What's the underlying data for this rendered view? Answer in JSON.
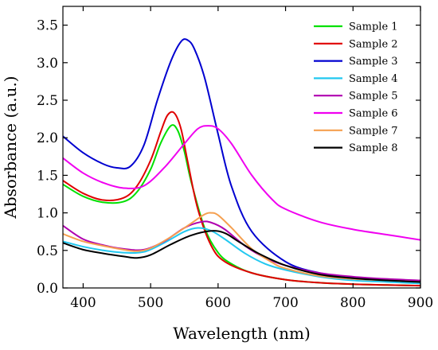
{
  "chart_data": {
    "type": "line",
    "xlabel": "Wavelength (nm)",
    "ylabel": "Absorbance (a.u.)",
    "xlim": [
      370,
      900
    ],
    "ylim": [
      0,
      3.75
    ],
    "xticks": [
      400,
      500,
      600,
      700,
      800,
      900
    ],
    "yticks": [
      0.0,
      0.5,
      1.0,
      1.5,
      2.0,
      2.5,
      3.0,
      3.5
    ],
    "ytick_labels": [
      "0.0",
      "0.5",
      "1.0",
      "1.5",
      "2.0",
      "2.5",
      "3.0",
      "3.5"
    ],
    "grid": false,
    "legend_position": "top-right",
    "series": [
      {
        "name": "Sample 1",
        "color": "#00e000",
        "x": [
          370,
          400,
          430,
          460,
          480,
          500,
          515,
          530,
          540,
          550,
          560,
          580,
          600,
          620,
          650,
          700,
          750,
          800,
          850,
          900
        ],
        "y": [
          1.38,
          1.22,
          1.14,
          1.15,
          1.28,
          1.58,
          1.93,
          2.16,
          2.1,
          1.82,
          1.42,
          0.8,
          0.47,
          0.32,
          0.2,
          0.11,
          0.07,
          0.05,
          0.04,
          0.03
        ]
      },
      {
        "name": "Sample 2",
        "color": "#e00000",
        "x": [
          370,
          400,
          430,
          460,
          480,
          500,
          515,
          525,
          535,
          545,
          555,
          570,
          590,
          610,
          650,
          700,
          750,
          800,
          850,
          900
        ],
        "y": [
          1.43,
          1.26,
          1.17,
          1.2,
          1.36,
          1.7,
          2.08,
          2.3,
          2.33,
          2.12,
          1.68,
          1.05,
          0.56,
          0.35,
          0.2,
          0.11,
          0.07,
          0.05,
          0.04,
          0.03
        ]
      },
      {
        "name": "Sample 3",
        "color": "#0000d0",
        "x": [
          370,
          400,
          430,
          450,
          470,
          490,
          510,
          530,
          545,
          555,
          565,
          580,
          600,
          620,
          650,
          700,
          750,
          800,
          850,
          900
        ],
        "y": [
          2.02,
          1.8,
          1.65,
          1.6,
          1.62,
          1.9,
          2.5,
          3.02,
          3.28,
          3.3,
          3.18,
          2.8,
          2.05,
          1.35,
          0.75,
          0.35,
          0.2,
          0.14,
          0.11,
          0.09
        ]
      },
      {
        "name": "Sample 4",
        "color": "#22c8f0",
        "x": [
          370,
          400,
          430,
          460,
          490,
          520,
          550,
          570,
          590,
          610,
          640,
          670,
          700,
          750,
          800,
          850,
          900
        ],
        "y": [
          0.62,
          0.55,
          0.5,
          0.47,
          0.48,
          0.6,
          0.75,
          0.8,
          0.76,
          0.65,
          0.46,
          0.32,
          0.24,
          0.15,
          0.1,
          0.08,
          0.06
        ]
      },
      {
        "name": "Sample 5",
        "color": "#b000b0",
        "x": [
          370,
          400,
          430,
          460,
          490,
          520,
          550,
          575,
          590,
          610,
          640,
          670,
          700,
          750,
          800,
          850,
          900
        ],
        "y": [
          0.83,
          0.65,
          0.57,
          0.52,
          0.51,
          0.62,
          0.8,
          0.88,
          0.87,
          0.78,
          0.56,
          0.4,
          0.3,
          0.2,
          0.15,
          0.12,
          0.1
        ]
      },
      {
        "name": "Sample 6",
        "color": "#f000f0",
        "x": [
          370,
          400,
          430,
          460,
          490,
          520,
          550,
          570,
          585,
          600,
          620,
          650,
          680,
          700,
          750,
          800,
          850,
          900
        ],
        "y": [
          1.73,
          1.53,
          1.4,
          1.33,
          1.36,
          1.6,
          1.92,
          2.12,
          2.16,
          2.12,
          1.92,
          1.5,
          1.18,
          1.05,
          0.88,
          0.78,
          0.71,
          0.64
        ]
      },
      {
        "name": "Sample 7",
        "color": "#f5a050",
        "x": [
          370,
          400,
          430,
          460,
          480,
          500,
          530,
          560,
          580,
          590,
          600,
          620,
          650,
          680,
          700,
          750,
          800,
          850,
          900
        ],
        "y": [
          0.72,
          0.62,
          0.56,
          0.51,
          0.49,
          0.53,
          0.68,
          0.86,
          0.98,
          1.0,
          0.97,
          0.8,
          0.52,
          0.34,
          0.26,
          0.16,
          0.12,
          0.1,
          0.08
        ]
      },
      {
        "name": "Sample 8",
        "color": "#000000",
        "x": [
          370,
          400,
          430,
          460,
          480,
          500,
          530,
          560,
          590,
          610,
          630,
          660,
          700,
          750,
          800,
          850,
          900
        ],
        "y": [
          0.6,
          0.51,
          0.46,
          0.42,
          0.4,
          0.44,
          0.58,
          0.7,
          0.76,
          0.73,
          0.62,
          0.46,
          0.3,
          0.18,
          0.13,
          0.1,
          0.08
        ]
      }
    ]
  }
}
